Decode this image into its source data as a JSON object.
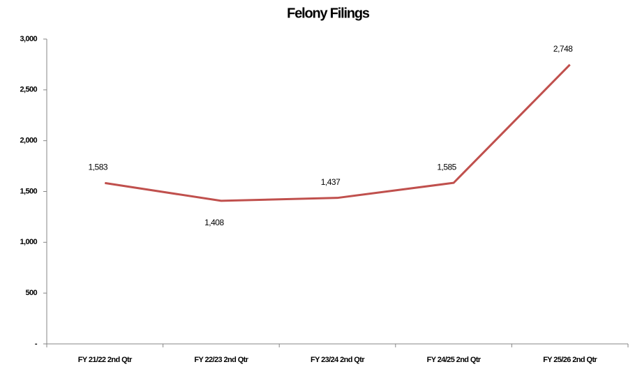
{
  "chart_data": {
    "type": "line",
    "title": "Felony Filings",
    "categories": [
      "FY 21/22 2nd Qtr",
      "FY 22/23 2nd Qtr",
      "FY 23/24 2nd Qtr",
      "FY 24/25 2nd Qtr",
      "FY 25/26 2nd Qtr"
    ],
    "values": [
      1583,
      1408,
      1437,
      1585,
      2748
    ],
    "value_labels": [
      "1,583",
      "1,408",
      "1,437",
      "1,585",
      "2,748"
    ],
    "color": "#c0504d",
    "ylim": [
      0,
      3000
    ],
    "yticks": [
      {
        "value": 0,
        "label": "-"
      },
      500,
      {
        "value": 1000,
        "label": "1,000"
      },
      {
        "value": 1500,
        "label": "1,500"
      },
      {
        "value": 2000,
        "label": "2,000"
      },
      {
        "value": 2500,
        "label": "2,500"
      },
      {
        "value": 3000,
        "label": "3,000"
      }
    ],
    "grid": false
  }
}
